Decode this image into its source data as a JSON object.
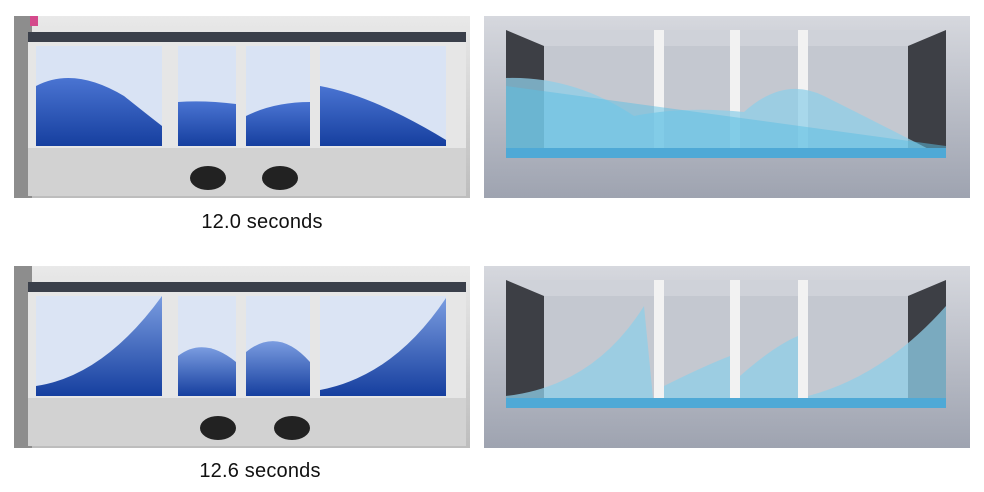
{
  "rows": [
    {
      "caption": "12.0 seconds",
      "experiment_image": "experiment-photo-sloshing-tank",
      "simulation_image": "simulation-render-sloshing-tank"
    },
    {
      "caption": "12.6 seconds",
      "experiment_image": "experiment-photo-sloshing-tank",
      "simulation_image": "simulation-render-sloshing-tank"
    }
  ],
  "colors": {
    "water_deep": "#1f4fb8",
    "water_light": "#5f86d8",
    "sim_water": "#7fd0ec",
    "sim_background": "#b9bdc8",
    "frame": "#d8d8d8"
  }
}
